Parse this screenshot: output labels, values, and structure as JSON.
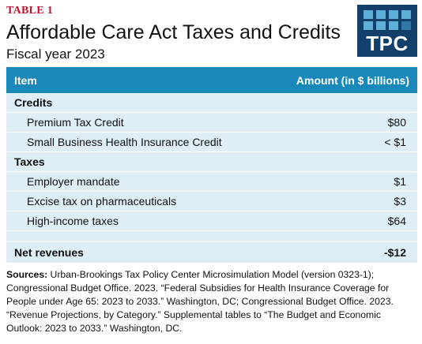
{
  "header": {
    "table_label": "TABLE 1",
    "title": "Affordable Care Act Taxes and Credits",
    "subtitle": "Fiscal year 2023",
    "logo_text": "TPC"
  },
  "table": {
    "columns": [
      "Item",
      "Amount (in $ billions)"
    ],
    "groups": [
      {
        "label": "Credits",
        "rows": [
          {
            "item": "Premium Tax Credit",
            "amount": "$80"
          },
          {
            "item": "Small Business Health Insurance Credit",
            "amount": "< $1"
          }
        ]
      },
      {
        "label": "Taxes",
        "rows": [
          {
            "item": "Employer mandate",
            "amount": "$1"
          },
          {
            "item": "Excise tax on pharmaceuticals",
            "amount": "$3"
          },
          {
            "item": "High-income taxes",
            "amount": "$64"
          }
        ]
      }
    ],
    "net": {
      "label": "Net revenues",
      "amount": "-$12"
    }
  },
  "sources": {
    "label": "Sources:",
    "text": "Urban-Brookings Tax Policy Center Microsimulation Model (version 0323-1); Congressional Budget Office. 2023. “Federal Subsidies for Health Insurance Coverage for People under Age 65: 2023 to 2033.” Washington, DC; Congressional Budget Office. 2023. “Revenue Projections, by Category.” Supplemental tables to “The Budget and Economic Outlook: 2023 to 2033.” Washington, DC."
  },
  "colors": {
    "accent_red": "#c0102b",
    "header_blue": "#1a88b8",
    "row_background": "#ddeef6",
    "logo_navy": "#12406b"
  }
}
